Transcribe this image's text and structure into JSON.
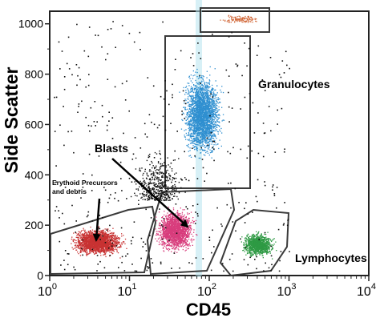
{
  "chart_data": {
    "type": "scatter",
    "title": "",
    "xlabel": "CD45",
    "ylabel": "Side Scatter",
    "xscale": "log",
    "xlim": [
      1,
      10000
    ],
    "ylim": [
      0,
      1050
    ],
    "grid": false,
    "x_ticks": [
      {
        "base": "10",
        "exp": "0"
      },
      {
        "base": "10",
        "exp": "1"
      },
      {
        "base": "10",
        "exp": "2"
      },
      {
        "base": "10",
        "exp": "3"
      },
      {
        "base": "10",
        "exp": "4"
      }
    ],
    "y_ticks": [
      "0",
      "200",
      "400",
      "600",
      "800",
      "1000"
    ],
    "populations": [
      {
        "label": "Erythoid Precursors and debris",
        "color": "#c83232",
        "x_range": [
          1.1,
          14
        ],
        "y_range": [
          40,
          230
        ],
        "count": 2200
      },
      {
        "label": "Blasts",
        "color": "#d83c7c",
        "x_range": [
          14,
          100
        ],
        "y_range": [
          30,
          330
        ],
        "count": 1700
      },
      {
        "label": "Granulocytes",
        "color": "#2f8fd0",
        "x_range": [
          30,
          220
        ],
        "y_range": [
          350,
          930
        ],
        "count": 2600
      },
      {
        "label": "Lymphocytes",
        "color": "#2e9a44",
        "x_range": [
          180,
          900
        ],
        "y_range": [
          40,
          210
        ],
        "count": 1100
      },
      {
        "label": "",
        "color": "#d2693a",
        "x_range": [
          90,
          650
        ],
        "y_range": [
          990,
          1050
        ],
        "count": 120
      }
    ],
    "annotations": {
      "granulocytes": "Granulocytes",
      "blasts": "Blasts",
      "erythroid": [
        "Erythoid Precursors",
        "and debris"
      ],
      "lymphocytes": "Lymphocytes"
    }
  }
}
